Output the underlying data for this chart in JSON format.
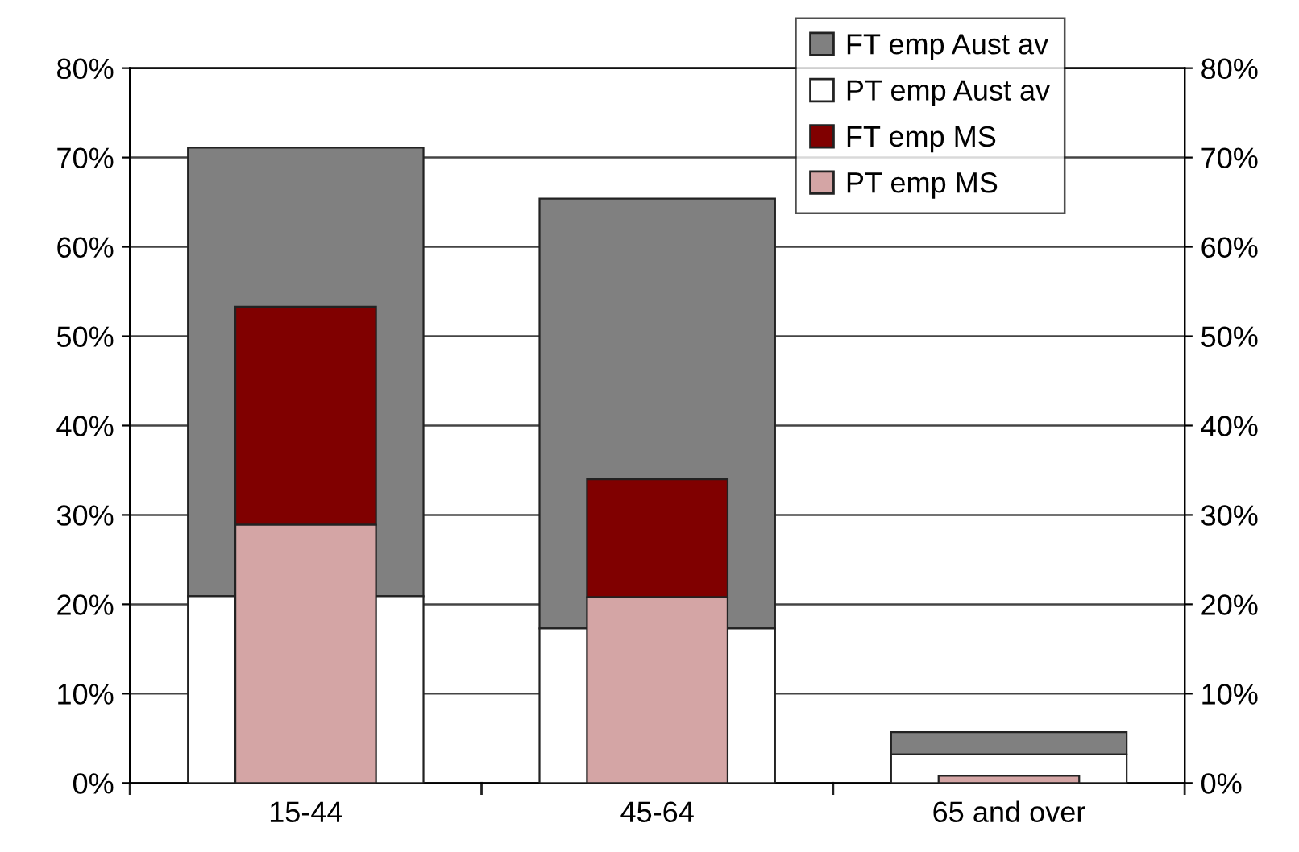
{
  "chart_data": {
    "type": "bar",
    "categories": [
      "15-44",
      "45-64",
      "65 and over"
    ],
    "series": [
      {
        "name": "FT emp Aust av",
        "color": "#808080",
        "values": [
          50.2,
          48.1,
          2.5
        ],
        "base": [
          20.9,
          17.3,
          3.2
        ]
      },
      {
        "name": "PT emp Aust av",
        "color": "#ffffff",
        "values": [
          20.9,
          17.3,
          3.2
        ]
      },
      {
        "name": "FT emp MS",
        "color": "#800000",
        "values": [
          24.4,
          13.2,
          null
        ],
        "base": [
          28.9,
          20.8,
          null
        ]
      },
      {
        "name": "PT emp MS",
        "color": "#d4a5a5",
        "values": [
          28.9,
          20.8,
          0.8
        ]
      }
    ],
    "ylim": [
      0,
      80
    ],
    "yticks": [
      {
        "value": 0,
        "label": "0%"
      },
      {
        "value": 10,
        "label": "10%"
      },
      {
        "value": 20,
        "label": "20%"
      },
      {
        "value": 30,
        "label": "30%"
      },
      {
        "value": 40,
        "label": "40%"
      },
      {
        "value": 50,
        "label": "50%"
      },
      {
        "value": 60,
        "label": "60%"
      },
      {
        "value": 70,
        "label": "70%"
      },
      {
        "value": 80,
        "label": "80%"
      }
    ],
    "y2lim": [
      0,
      80
    ],
    "y2ticks": [
      {
        "value": 0,
        "label": "0%"
      },
      {
        "value": 10,
        "label": "10%"
      },
      {
        "value": 20,
        "label": "20%"
      },
      {
        "value": 30,
        "label": "30%"
      },
      {
        "value": 40,
        "label": "40%"
      },
      {
        "value": 50,
        "label": "50%"
      },
      {
        "value": 60,
        "label": "60%"
      },
      {
        "value": 70,
        "label": "70%"
      },
      {
        "value": 80,
        "label": "80%"
      }
    ],
    "grid": "y",
    "legend": "top right"
  }
}
